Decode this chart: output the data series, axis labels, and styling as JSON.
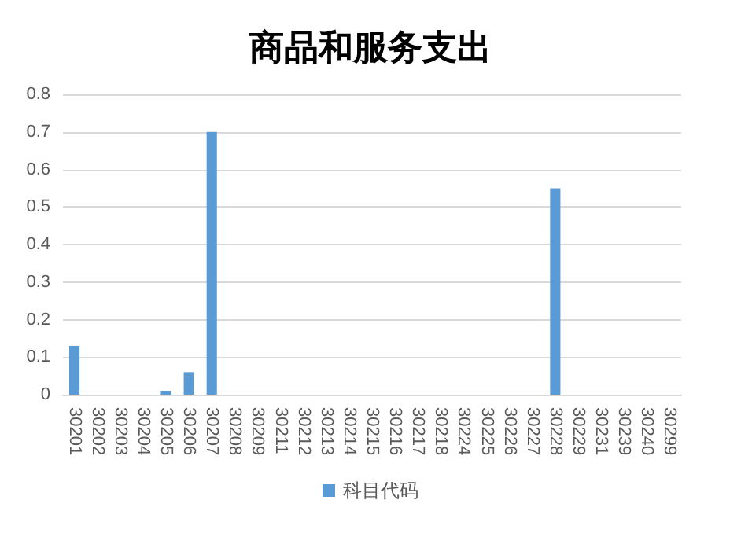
{
  "chart_data": {
    "type": "bar",
    "title": "商品和服务支出",
    "categories": [
      "30201",
      "30202",
      "30203",
      "30204",
      "30205",
      "30206",
      "30207",
      "30208",
      "30209",
      "30211",
      "30212",
      "30213",
      "30214",
      "30215",
      "30216",
      "30217",
      "30218",
      "30224",
      "30225",
      "30226",
      "30227",
      "30228",
      "30229",
      "30231",
      "30239",
      "30240",
      "30299"
    ],
    "series": [
      {
        "name": "科目代码",
        "color": "#5b9bd5",
        "values": [
          0.13,
          0,
          0,
          0,
          0.01,
          0.06,
          0.7,
          0,
          0,
          0,
          0,
          0,
          0,
          0,
          0,
          0,
          0,
          0,
          0,
          0,
          0,
          0.55,
          0,
          0,
          0,
          0,
          0
        ]
      }
    ],
    "ylim": [
      0,
      0.8
    ],
    "yticks": [
      0,
      0.1,
      0.2,
      0.3,
      0.4,
      0.5,
      0.6,
      0.7,
      0.8
    ],
    "grid": "y",
    "legend": "bottom"
  }
}
